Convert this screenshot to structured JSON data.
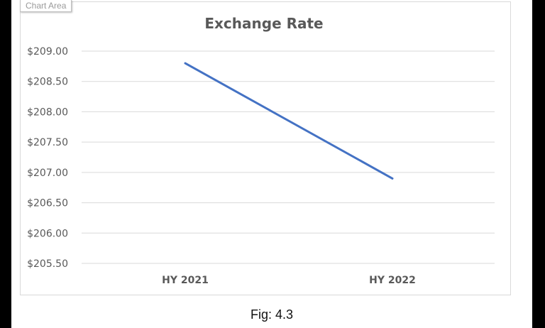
{
  "chart_area_label": "Chart Area",
  "caption": "Fig: 4.3",
  "chart_data": {
    "type": "line",
    "title": "Exchange Rate",
    "xlabel": "",
    "ylabel": "",
    "categories": [
      "HY 2021",
      "HY 2022"
    ],
    "series": [
      {
        "values": [
          208.8,
          206.9
        ],
        "color": "#4472C4"
      }
    ],
    "ylim": [
      205.5,
      209.0
    ],
    "y_ticks": [
      209.0,
      208.5,
      208.0,
      207.5,
      207.0,
      206.5,
      206.0,
      205.5
    ],
    "y_tick_labels": [
      "$209.00",
      "$208.50",
      "$208.00",
      "$207.50",
      "$207.00",
      "$206.50",
      "$206.00",
      "$205.50"
    ],
    "grid": true,
    "legend": "none"
  }
}
